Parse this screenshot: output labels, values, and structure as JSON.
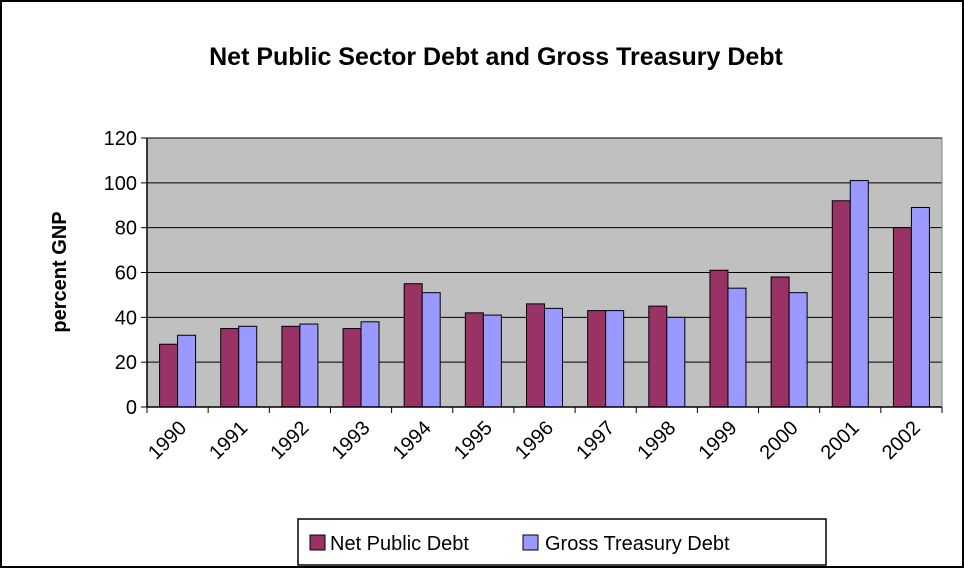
{
  "chart_data": {
    "type": "bar",
    "title": "Net Public Sector Debt and Gross Treasury Debt",
    "xlabel": "",
    "ylabel": "percent GNP",
    "ylim": [
      0,
      120
    ],
    "yticks": [
      0,
      20,
      40,
      60,
      80,
      100,
      120
    ],
    "categories": [
      "1990",
      "1991",
      "1992",
      "1993",
      "1994",
      "1995",
      "1996",
      "1997",
      "1998",
      "1999",
      "2000",
      "2001",
      "2002"
    ],
    "series": [
      {
        "name": "Net Public Debt",
        "color": "#993366",
        "values": [
          28,
          35,
          36,
          35,
          55,
          42,
          46,
          43,
          45,
          61,
          58,
          92,
          80
        ]
      },
      {
        "name": "Gross Treasury Debt",
        "color": "#9999ff",
        "values": [
          32,
          36,
          37,
          38,
          51,
          41,
          44,
          43,
          40,
          53,
          51,
          101,
          89
        ]
      }
    ],
    "grid": true,
    "plot_background": "#c0c0c0",
    "legend_position": "bottom"
  }
}
